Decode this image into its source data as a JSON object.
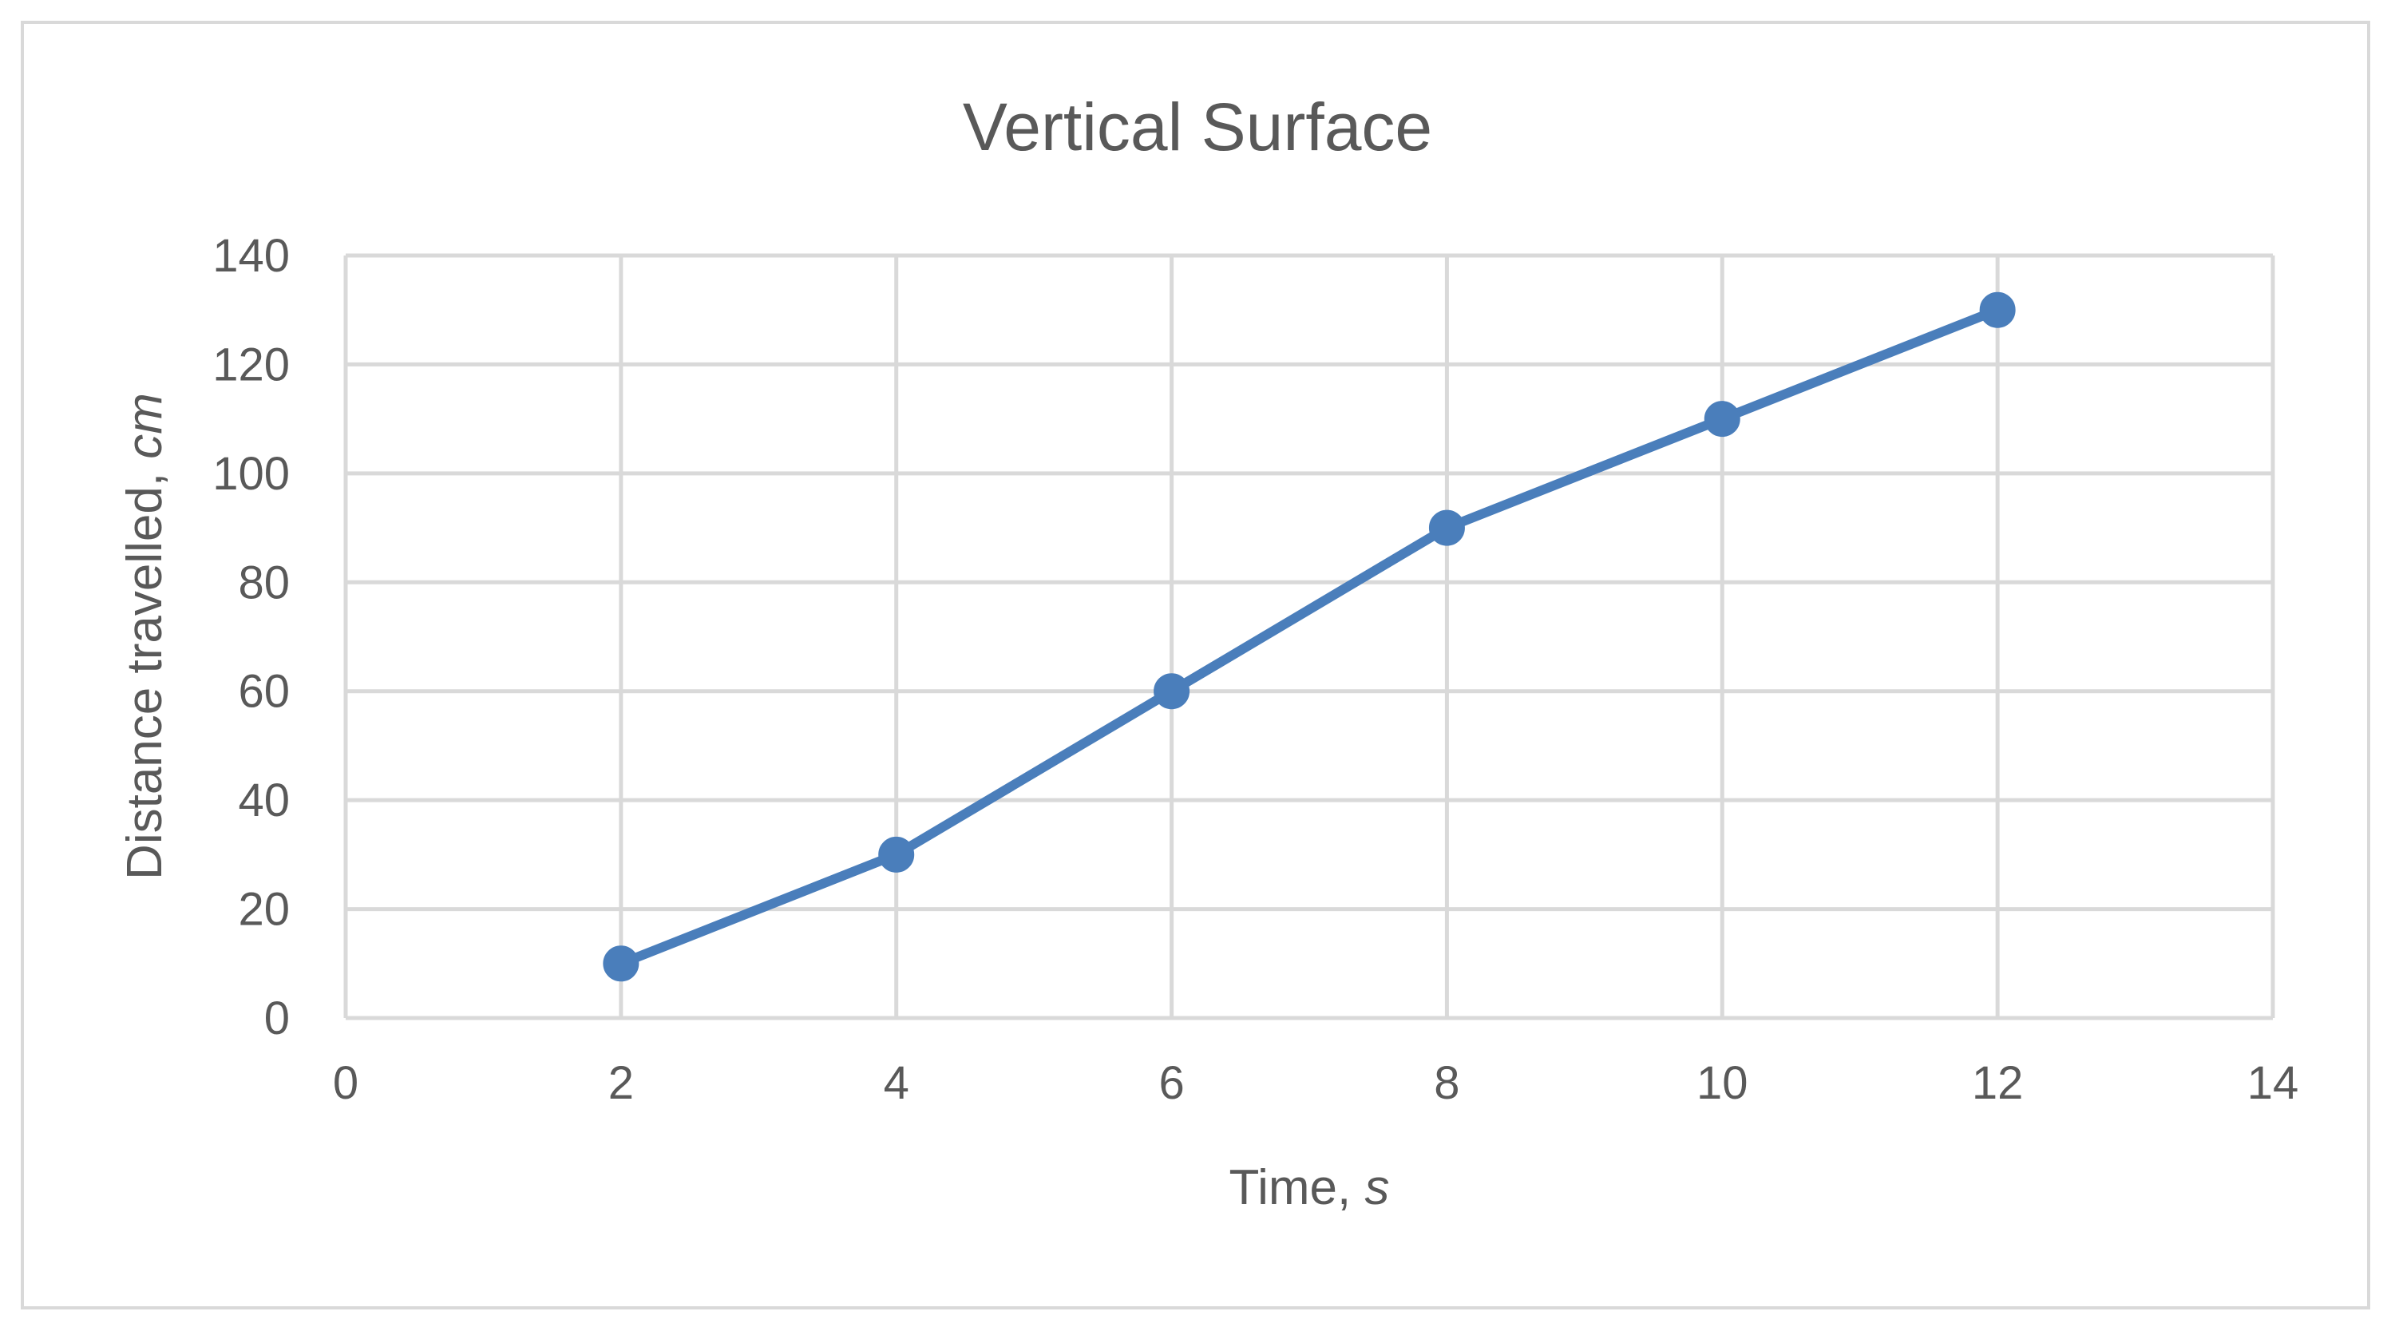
{
  "chart_data": {
    "type": "line",
    "title": "Vertical Surface",
    "xlabel_main": "Time, ",
    "xlabel_unit": "s",
    "ylabel_main": "Distance travelled, ",
    "ylabel_unit": "cm",
    "xlim": [
      0,
      14
    ],
    "ylim": [
      0,
      140
    ],
    "x_ticks": [
      "0",
      "2",
      "4",
      "6",
      "8",
      "10",
      "12",
      "14"
    ],
    "y_ticks": [
      "0",
      "20",
      "40",
      "60",
      "80",
      "100",
      "120",
      "140"
    ],
    "grid": true,
    "series": [
      {
        "x": [
          2,
          4,
          6,
          8,
          10,
          12
        ],
        "y": [
          10,
          30,
          60,
          90,
          110,
          130
        ]
      }
    ],
    "colors": {
      "series": "#4a7ebb",
      "grid": "#d9d9d9",
      "text": "#595959"
    }
  }
}
